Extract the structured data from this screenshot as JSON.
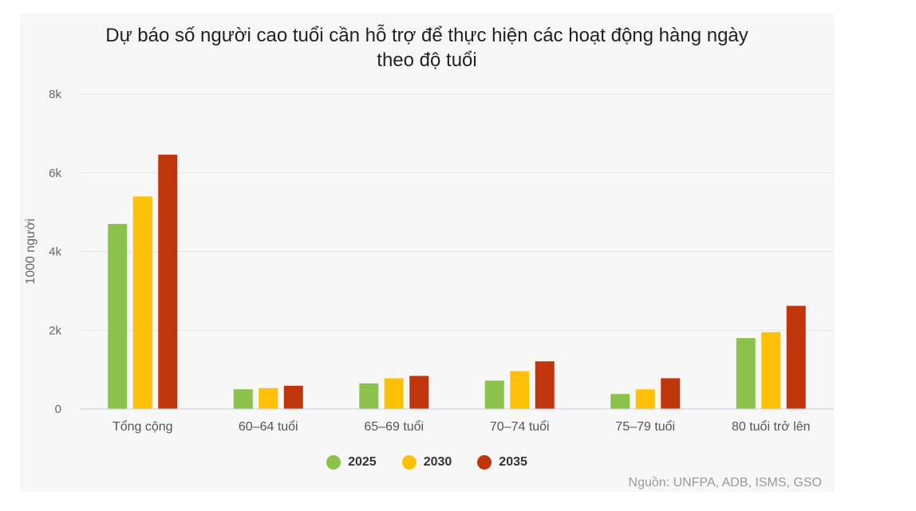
{
  "chart_data": {
    "type": "bar",
    "title": "Dự báo số người cao tuổi cần hỗ trợ để thực hiện các hoạt động hàng ngày",
    "title_line2": "theo độ tuổi",
    "ylabel": "1000 người",
    "xlabel": "",
    "ylim": [
      0,
      8000
    ],
    "yticks": [
      0,
      2000,
      4000,
      6000,
      8000
    ],
    "ytick_labels": [
      "0",
      "2k",
      "4k",
      "6k",
      "8k"
    ],
    "grid": true,
    "legend_position": "bottom",
    "categories": [
      "Tổng cộng",
      "60–64 tuổi",
      "65–69 tuổi",
      "70–74 tuổi",
      "75–79 tuổi",
      "80 tuổi trở lên"
    ],
    "series": [
      {
        "name": "2025",
        "color": "#8bc34a",
        "values": [
          4700,
          500,
          650,
          720,
          380,
          1800
        ]
      },
      {
        "name": "2030",
        "color": "#ffc107",
        "values": [
          5400,
          530,
          780,
          960,
          500,
          1950
        ]
      },
      {
        "name": "2035",
        "color": "#bf360c",
        "values": [
          6460,
          590,
          840,
          1210,
          780,
          2620
        ]
      }
    ],
    "source": "Nguồn: UNFPA, ADB, ISMS, GSO"
  }
}
